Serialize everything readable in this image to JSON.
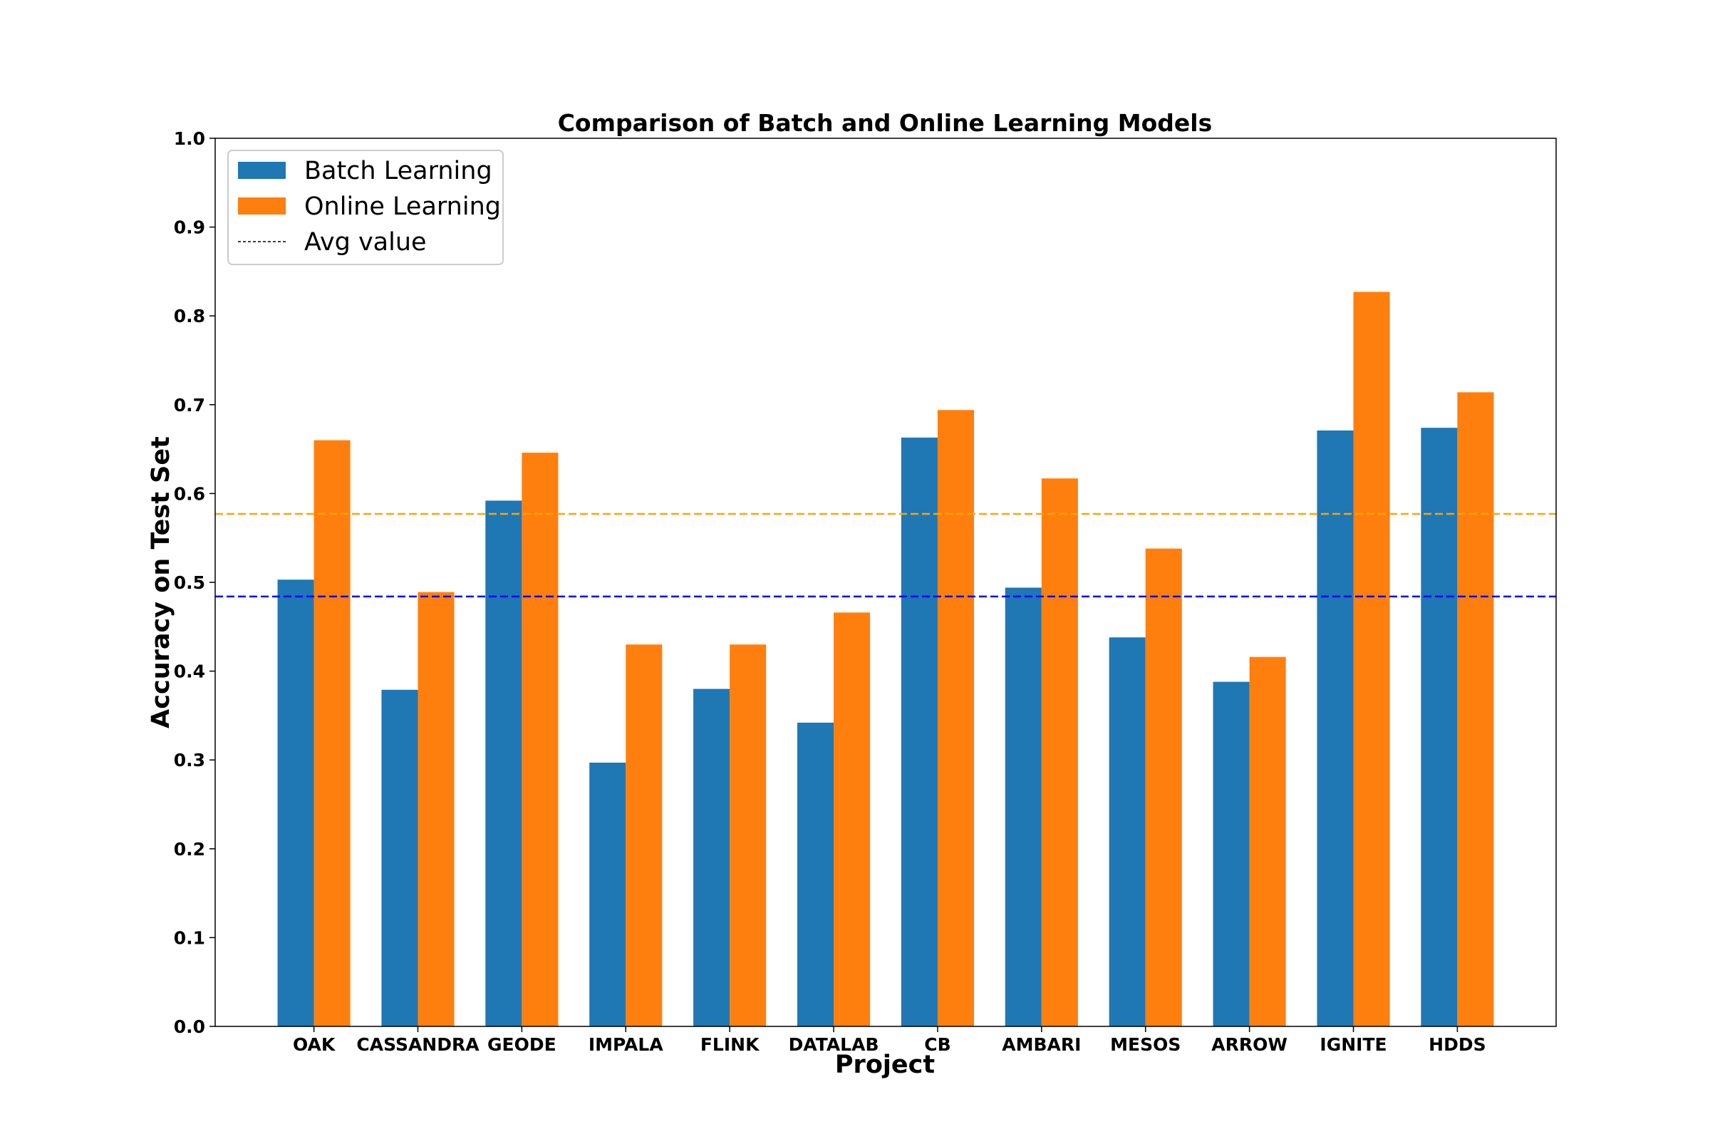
{
  "chart_data": {
    "type": "bar",
    "title": "Comparison of Batch and Online Learning Models",
    "xlabel": "Project",
    "ylabel": "Accuracy on Test Set",
    "ylim": [
      0,
      1.0
    ],
    "yticks": [
      "0.0",
      "0.1",
      "0.2",
      "0.3",
      "0.4",
      "0.5",
      "0.6",
      "0.7",
      "0.8",
      "0.9",
      "1.0"
    ],
    "categories": [
      "OAK",
      "CASSANDRA",
      "GEODE",
      "IMPALA",
      "FLINK",
      "DATALAB",
      "CB",
      "AMBARI",
      "MESOS",
      "ARROW",
      "IGNITE",
      "HDDS"
    ],
    "series": [
      {
        "name": "Batch Learning",
        "color": "#1f77b4",
        "values": [
          0.503,
          0.379,
          0.592,
          0.297,
          0.38,
          0.342,
          0.663,
          0.494,
          0.438,
          0.388,
          0.671,
          0.674
        ],
        "avg": 0.484,
        "avg_color": "#0000ff"
      },
      {
        "name": "Online Learning",
        "color": "#ff7f0e",
        "values": [
          0.66,
          0.489,
          0.646,
          0.43,
          0.43,
          0.466,
          0.694,
          0.617,
          0.538,
          0.416,
          0.827,
          0.714
        ],
        "avg": 0.577,
        "avg_color": "#ffa500"
      }
    ],
    "avg_line_label": "Avg value",
    "legend_position": "upper-left",
    "grid": false
  }
}
